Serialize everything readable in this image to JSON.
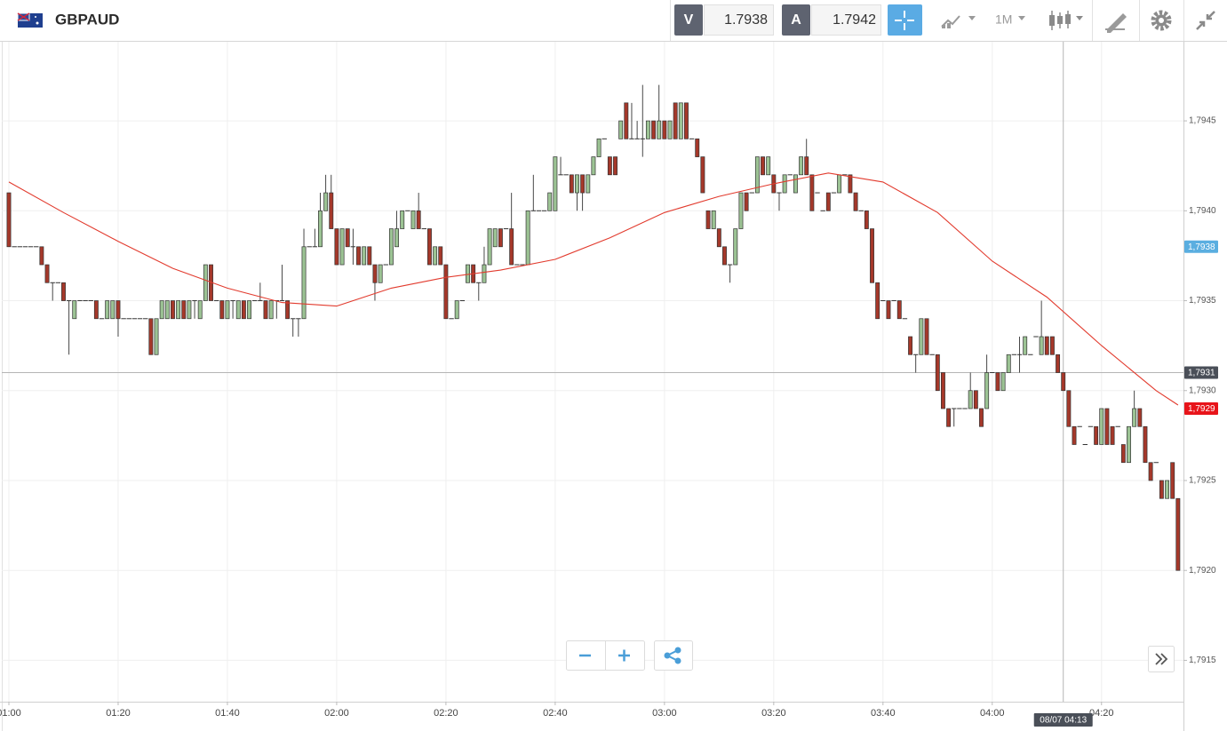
{
  "toolbar": {
    "symbol": "GBPAUD",
    "sell_label": "V",
    "sell_price": 1.7938,
    "buy_label": "A",
    "buy_price": 1.7942,
    "timeframe": "1M"
  },
  "chart_data": {
    "type": "candlestick",
    "x": [
      0,
      1,
      2,
      3,
      4,
      5,
      6,
      7,
      8,
      9,
      10,
      11,
      12,
      13,
      14,
      15,
      16,
      17,
      18,
      19,
      20,
      21,
      22,
      23,
      24,
      25,
      26,
      27,
      28,
      29,
      30,
      31,
      32,
      33,
      34,
      35,
      36,
      37,
      38,
      39,
      40,
      41,
      42,
      43,
      44,
      45,
      46,
      47,
      48,
      49,
      50,
      51,
      52,
      53,
      54,
      55,
      56,
      57,
      58,
      59,
      60,
      61,
      62,
      63,
      64,
      65,
      66,
      67,
      68,
      69,
      70,
      71,
      72,
      73,
      74,
      75,
      76,
      77,
      78,
      79,
      80,
      81,
      82,
      83,
      84,
      85,
      86,
      87,
      88,
      89,
      90,
      91,
      92,
      93,
      94,
      95,
      96,
      97,
      98,
      99,
      100,
      101,
      102,
      103,
      104,
      105,
      106,
      107,
      108,
      109,
      110,
      111,
      112,
      113,
      114,
      115,
      116,
      117,
      118,
      119,
      120,
      121,
      122,
      123,
      124,
      125,
      126,
      127,
      128,
      129,
      130,
      131,
      132,
      133,
      134,
      135,
      136,
      137,
      138,
      139,
      140,
      141,
      142,
      143,
      144,
      145,
      146,
      147,
      148,
      149,
      150,
      151,
      152,
      153,
      154,
      155,
      156,
      157,
      158,
      159,
      160,
      161,
      162,
      163,
      164,
      165,
      166,
      167,
      168,
      169,
      170,
      171,
      172,
      173,
      174,
      175,
      176,
      177,
      178,
      179,
      180,
      181,
      182,
      183,
      184,
      185,
      186,
      187,
      188,
      189,
      190,
      191,
      192,
      193,
      194,
      195,
      196,
      197,
      198,
      199,
      200,
      201,
      202,
      203,
      204,
      205,
      206,
      207,
      208,
      209,
      210,
      211,
      212,
      213,
      214
    ],
    "open": [
      1.7941,
      1.7938,
      1.7938,
      1.7938,
      1.7938,
      1.7938,
      1.7938,
      1.7937,
      1.7936,
      1.7936,
      1.7936,
      1.7935,
      1.7934,
      1.7935,
      1.7935,
      1.7935,
      1.7935,
      1.7934,
      1.7934,
      1.7934,
      1.7935,
      1.7934,
      1.7934,
      1.7934,
      1.7934,
      1.7934,
      1.7934,
      1.7932,
      1.7934,
      1.7934,
      1.7935,
      1.7934,
      1.7935,
      1.7934,
      1.7935,
      1.7934,
      1.7935,
      1.7937,
      1.7935,
      1.7935,
      1.7934,
      1.7935,
      1.7934,
      1.7935,
      1.7934,
      1.7935,
      1.7935,
      1.7935,
      1.7934,
      1.7935,
      1.7935,
      1.7935,
      1.7934,
      1.7934,
      1.7934,
      1.7938,
      1.7938,
      1.7938,
      1.794,
      1.7941,
      1.7939,
      1.7937,
      1.7939,
      1.7938,
      1.7938,
      1.7937,
      1.7938,
      1.7937,
      1.7936,
      1.7937,
      1.7937,
      1.7938,
      1.7939,
      1.794,
      1.7939,
      1.794,
      1.7939,
      1.7939,
      1.7937,
      1.7938,
      1.7937,
      1.7934,
      1.7934,
      1.7935,
      1.7936,
      1.7937,
      1.7936,
      1.7936,
      1.7937,
      1.7938,
      1.7939,
      1.7939,
      1.7939,
      1.7937,
      1.7937,
      1.7937,
      1.794,
      1.794,
      1.794,
      1.794,
      1.794,
      1.7942,
      1.7942,
      1.7942,
      1.7941,
      1.7942,
      1.7941,
      1.7942,
      1.7943,
      1.7944,
      1.7943,
      1.7943,
      1.7944,
      1.7946,
      1.7944,
      1.7944,
      1.7944,
      1.7944,
      1.7945,
      1.7944,
      1.7945,
      1.7944,
      1.7946,
      1.7944,
      1.7946,
      1.7944,
      1.7944,
      1.7943,
      1.794,
      1.7939,
      1.7939,
      1.7938,
      1.7937,
      1.7937,
      1.7939,
      1.7941,
      1.7941,
      1.7941,
      1.7943,
      1.7942,
      1.7942,
      1.7941,
      1.7941,
      1.7942,
      1.7941,
      1.7942,
      1.7943,
      1.7942,
      1.7941,
      1.794,
      1.7941,
      1.7941,
      1.7941,
      1.7942,
      1.7942,
      1.7941,
      1.794,
      1.794,
      1.7939,
      1.7936,
      1.7935,
      1.7935,
      1.7935,
      1.7935,
      1.7934,
      1.7933,
      1.7932,
      1.7932,
      1.7934,
      1.7932,
      1.7932,
      1.7931,
      1.7929,
      1.7929,
      1.7929,
      1.7929,
      1.7929,
      1.793,
      1.7929,
      1.7929,
      1.7931,
      1.7931,
      1.793,
      1.7931,
      1.7932,
      1.7932,
      1.7932,
      1.7932,
      1.7933,
      1.7932,
      1.7933,
      1.7933,
      1.7932,
      1.7931,
      1.793,
      1.7928,
      1.7928,
      1.7927,
      1.7928,
      1.7928,
      1.7927,
      1.7929,
      1.7928,
      1.7928,
      1.7927,
      1.7926,
      1.7928,
      1.7929,
      1.7928,
      1.7926,
      1.7926,
      1.7925,
      1.7924,
      1.7926,
      1.7924
    ],
    "high": [
      1.7941,
      1.7938,
      1.7938,
      1.7938,
      1.7938,
      1.7938,
      1.7938,
      1.7937,
      1.7936,
      1.7936,
      1.7936,
      1.7935,
      1.7935,
      1.7935,
      1.7935,
      1.7935,
      1.7935,
      1.7934,
      1.7935,
      1.7935,
      1.7935,
      1.7934,
      1.7934,
      1.7934,
      1.7934,
      1.7934,
      1.7934,
      1.7934,
      1.7935,
      1.7935,
      1.7935,
      1.7935,
      1.7935,
      1.7935,
      1.7935,
      1.7935,
      1.7937,
      1.7937,
      1.7935,
      1.7935,
      1.7935,
      1.7935,
      1.7935,
      1.7935,
      1.7935,
      1.7935,
      1.7936,
      1.7935,
      1.7935,
      1.7935,
      1.7937,
      1.7935,
      1.7934,
      1.7934,
      1.7939,
      1.7938,
      1.7939,
      1.7941,
      1.7942,
      1.7942,
      1.7939,
      1.7939,
      1.7939,
      1.7939,
      1.7938,
      1.7938,
      1.7938,
      1.7937,
      1.7937,
      1.7937,
      1.7939,
      1.794,
      1.794,
      1.794,
      1.794,
      1.7941,
      1.7939,
      1.7939,
      1.7938,
      1.7938,
      1.7937,
      1.7934,
      1.7935,
      1.7935,
      1.7937,
      1.7937,
      1.7936,
      1.7938,
      1.7939,
      1.7939,
      1.7939,
      1.7939,
      1.7941,
      1.7937,
      1.7937,
      1.794,
      1.7942,
      1.794,
      1.794,
      1.7941,
      1.7943,
      1.7943,
      1.7942,
      1.7942,
      1.7942,
      1.7942,
      1.7942,
      1.7943,
      1.7944,
      1.7944,
      1.7943,
      1.7943,
      1.7945,
      1.7946,
      1.7946,
      1.7945,
      1.7947,
      1.7945,
      1.7945,
      1.7947,
      1.7945,
      1.7945,
      1.7946,
      1.7946,
      1.7946,
      1.7944,
      1.7944,
      1.7943,
      1.794,
      1.794,
      1.7939,
      1.7938,
      1.7937,
      1.7939,
      1.7941,
      1.7941,
      1.7941,
      1.7943,
      1.7943,
      1.7943,
      1.7942,
      1.7941,
      1.7942,
      1.7942,
      1.7942,
      1.7943,
      1.7944,
      1.7942,
      1.7941,
      1.794,
      1.7941,
      1.7941,
      1.7942,
      1.7942,
      1.7942,
      1.7941,
      1.794,
      1.794,
      1.7939,
      1.7936,
      1.7935,
      1.7935,
      1.7935,
      1.7935,
      1.7934,
      1.7933,
      1.7932,
      1.7934,
      1.7934,
      1.7932,
      1.7932,
      1.7931,
      1.7929,
      1.7929,
      1.7929,
      1.7929,
      1.7931,
      1.793,
      1.7929,
      1.7932,
      1.7931,
      1.7931,
      1.7931,
      1.7932,
      1.7932,
      1.7933,
      1.7933,
      1.7932,
      1.7933,
      1.7935,
      1.7933,
      1.7933,
      1.7932,
      1.7931,
      1.793,
      1.7928,
      1.7928,
      1.7927,
      1.7928,
      1.7928,
      1.7929,
      1.7929,
      1.7928,
      1.7928,
      1.7927,
      1.7928,
      1.793,
      1.7929,
      1.7928,
      1.7926,
      1.7926,
      1.7925,
      1.7925,
      1.7926,
      1.7924
    ],
    "low": [
      1.7938,
      1.7938,
      1.7938,
      1.7938,
      1.7938,
      1.7938,
      1.7937,
      1.7936,
      1.7935,
      1.7936,
      1.7935,
      1.7932,
      1.7934,
      1.7935,
      1.7935,
      1.7935,
      1.7934,
      1.7934,
      1.7934,
      1.7934,
      1.7933,
      1.7934,
      1.7934,
      1.7934,
      1.7934,
      1.7934,
      1.7932,
      1.7932,
      1.7934,
      1.7934,
      1.7934,
      1.7934,
      1.7934,
      1.7934,
      1.7934,
      1.7934,
      1.7935,
      1.7935,
      1.7935,
      1.7934,
      1.7934,
      1.7934,
      1.7934,
      1.7934,
      1.7934,
      1.7935,
      1.7935,
      1.7934,
      1.7934,
      1.7934,
      1.7935,
      1.7934,
      1.7933,
      1.7933,
      1.7934,
      1.7938,
      1.7938,
      1.7938,
      1.794,
      1.7939,
      1.7937,
      1.7937,
      1.7938,
      1.7937,
      1.7937,
      1.7937,
      1.7937,
      1.7935,
      1.7936,
      1.7937,
      1.7937,
      1.7938,
      1.7939,
      1.794,
      1.7939,
      1.7939,
      1.7939,
      1.7937,
      1.7937,
      1.7937,
      1.7934,
      1.7934,
      1.7934,
      1.7935,
      1.7936,
      1.7936,
      1.7935,
      1.7936,
      1.7937,
      1.7938,
      1.7938,
      1.7939,
      1.7937,
      1.7937,
      1.7937,
      1.7937,
      1.794,
      1.794,
      1.794,
      1.794,
      1.794,
      1.7942,
      1.7942,
      1.7941,
      1.794,
      1.794,
      1.7941,
      1.7942,
      1.7943,
      1.7944,
      1.7942,
      1.7942,
      1.7944,
      1.7944,
      1.7944,
      1.7944,
      1.7943,
      1.7944,
      1.7944,
      1.7944,
      1.7944,
      1.7944,
      1.7944,
      1.7944,
      1.7944,
      1.7944,
      1.7943,
      1.7941,
      1.7939,
      1.7939,
      1.7938,
      1.7937,
      1.7936,
      1.7937,
      1.7939,
      1.794,
      1.7941,
      1.7941,
      1.7942,
      1.7942,
      1.7941,
      1.794,
      1.7941,
      1.7942,
      1.7941,
      1.7942,
      1.7942,
      1.794,
      1.7941,
      1.794,
      1.794,
      1.7941,
      1.7941,
      1.7942,
      1.7941,
      1.794,
      1.794,
      1.7939,
      1.7936,
      1.7934,
      1.7935,
      1.7934,
      1.7935,
      1.7934,
      1.7934,
      1.7932,
      1.7931,
      1.7932,
      1.7932,
      1.7932,
      1.793,
      1.7929,
      1.7928,
      1.7928,
      1.7929,
      1.7929,
      1.7929,
      1.7929,
      1.7928,
      1.7929,
      1.7931,
      1.793,
      1.793,
      1.7931,
      1.7932,
      1.7931,
      1.7932,
      1.7932,
      1.7933,
      1.7932,
      1.7932,
      1.7932,
      1.7931,
      1.793,
      1.7928,
      1.7927,
      1.7928,
      1.7927,
      1.7928,
      1.7927,
      1.7927,
      1.7927,
      1.7927,
      1.7928,
      1.7926,
      1.7926,
      1.7928,
      1.7928,
      1.7926,
      1.7925,
      1.7926,
      1.7924,
      1.7924,
      1.7924,
      1.792
    ],
    "close": [
      1.7938,
      1.7938,
      1.7938,
      1.7938,
      1.7938,
      1.7938,
      1.7937,
      1.7936,
      1.7936,
      1.7936,
      1.7935,
      1.7935,
      1.7935,
      1.7935,
      1.7935,
      1.7935,
      1.7934,
      1.7934,
      1.7935,
      1.7935,
      1.7934,
      1.7934,
      1.7934,
      1.7934,
      1.7934,
      1.7934,
      1.7932,
      1.7934,
      1.7935,
      1.7935,
      1.7934,
      1.7935,
      1.7934,
      1.7935,
      1.7935,
      1.7935,
      1.7937,
      1.7935,
      1.7935,
      1.7934,
      1.7935,
      1.7935,
      1.7935,
      1.7934,
      1.7935,
      1.7935,
      1.7935,
      1.7934,
      1.7935,
      1.7935,
      1.7935,
      1.7934,
      1.7934,
      1.7934,
      1.7938,
      1.7938,
      1.7938,
      1.794,
      1.7941,
      1.7939,
      1.7937,
      1.7939,
      1.7938,
      1.7938,
      1.7937,
      1.7938,
      1.7937,
      1.7936,
      1.7937,
      1.7937,
      1.7939,
      1.7939,
      1.794,
      1.794,
      1.794,
      1.7939,
      1.7939,
      1.7937,
      1.7938,
      1.7937,
      1.7934,
      1.7934,
      1.7935,
      1.7935,
      1.7937,
      1.7936,
      1.7936,
      1.7937,
      1.7939,
      1.7939,
      1.7938,
      1.7939,
      1.7937,
      1.7937,
      1.7937,
      1.794,
      1.794,
      1.794,
      1.794,
      1.7941,
      1.7943,
      1.7942,
      1.7942,
      1.7941,
      1.7942,
      1.7941,
      1.7942,
      1.7943,
      1.7944,
      1.7944,
      1.7942,
      1.7942,
      1.7945,
      1.7944,
      1.7944,
      1.7944,
      1.7944,
      1.7945,
      1.7944,
      1.7945,
      1.7944,
      1.7945,
      1.7944,
      1.7946,
      1.7944,
      1.7944,
      1.7943,
      1.7941,
      1.7939,
      1.794,
      1.7938,
      1.7937,
      1.7937,
      1.7939,
      1.7941,
      1.794,
      1.7941,
      1.7943,
      1.7942,
      1.7943,
      1.7941,
      1.7941,
      1.7942,
      1.7942,
      1.7942,
      1.7943,
      1.7942,
      1.794,
      1.7941,
      1.794,
      1.794,
      1.7941,
      1.7942,
      1.7942,
      1.7941,
      1.794,
      1.794,
      1.7939,
      1.7936,
      1.7934,
      1.7935,
      1.7934,
      1.7935,
      1.7934,
      1.7934,
      1.7932,
      1.7932,
      1.7934,
      1.7932,
      1.7932,
      1.793,
      1.7929,
      1.7928,
      1.7929,
      1.7929,
      1.7929,
      1.793,
      1.7929,
      1.7928,
      1.7931,
      1.7931,
      1.793,
      1.7931,
      1.7932,
      1.7932,
      1.7932,
      1.7933,
      1.7932,
      1.7933,
      1.7933,
      1.7932,
      1.7932,
      1.7931,
      1.793,
      1.7928,
      1.7927,
      1.7928,
      1.7927,
      1.7928,
      1.7927,
      1.7929,
      1.7927,
      1.7927,
      1.7928,
      1.7926,
      1.7928,
      1.7929,
      1.7928,
      1.7926,
      1.7925,
      1.7926,
      1.7924,
      1.7925,
      1.7924,
      1.792
    ],
    "up_color": "#9cc394",
    "down_color": "#a5382a",
    "moving_average": {
      "color": "#e23b2e",
      "x": [
        0,
        10,
        20,
        30,
        40,
        50,
        60,
        70,
        80,
        90,
        100,
        110,
        120,
        130,
        140,
        150,
        160,
        170,
        180,
        190,
        200,
        210,
        214
      ],
      "values": [
        1.79416,
        1.79399,
        1.79383,
        1.79368,
        1.79357,
        1.79349,
        1.79347,
        1.79357,
        1.79363,
        1.79367,
        1.79373,
        1.79385,
        1.79399,
        1.79408,
        1.79415,
        1.79421,
        1.79416,
        1.79399,
        1.79372,
        1.79352,
        1.79325,
        1.793,
        1.79292
      ]
    },
    "xlim": [
      -1.3,
      215
    ],
    "xticks": [
      {
        "value": 0,
        "label": "01:00"
      },
      {
        "value": 20,
        "label": "01:20"
      },
      {
        "value": 40,
        "label": "01:40"
      },
      {
        "value": 60,
        "label": "02:00"
      },
      {
        "value": 80,
        "label": "02:20"
      },
      {
        "value": 100,
        "label": "02:40"
      },
      {
        "value": 120,
        "label": "03:00"
      },
      {
        "value": 140,
        "label": "03:20"
      },
      {
        "value": 160,
        "label": "03:40"
      },
      {
        "value": 180,
        "label": "04:00"
      },
      {
        "value": 200,
        "label": "04:20"
      }
    ],
    "ylim": [
      1.79127,
      1.79494
    ],
    "yticks": [
      {
        "value": 1.7915,
        "label": "1,7915"
      },
      {
        "value": 1.792,
        "label": "1,7920"
      },
      {
        "value": 1.7925,
        "label": "1,7925"
      },
      {
        "value": 1.793,
        "label": "1,7930"
      },
      {
        "value": 1.7935,
        "label": "1,7935"
      },
      {
        "value": 1.794,
        "label": "1,7940"
      },
      {
        "value": 1.7945,
        "label": "1,7945"
      }
    ],
    "grid": true,
    "price_markers": [
      {
        "value": 1.7938,
        "label": "1,7938",
        "color": "#5aaee0"
      },
      {
        "value": 1.7929,
        "label": "1,7929",
        "color": "#e8141a"
      }
    ],
    "crosshair": {
      "x": 193,
      "x_label": "08/07 04:13",
      "y": 1.7931,
      "y_label": "1,7931",
      "color": "#4a4f58"
    }
  }
}
